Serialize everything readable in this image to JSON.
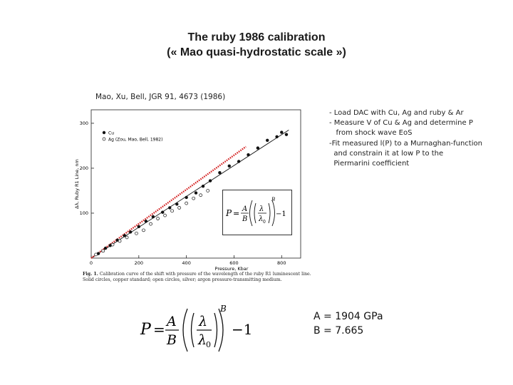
{
  "title": {
    "line1": "The ruby 1986 calibration",
    "line2": "(« Mao quasi-hydrostatic scale »)"
  },
  "reference": "Mao, Xu, Bell, JGR 91, 4673 (1986)",
  "bullets": [
    "- Load DAC with Cu, Ag and ruby & Ar",
    "- Measure V of Cu & Ag and determine P",
    "   from shock wave EoS",
    "-Fit measured l(P) to a Murnaghan-function",
    "  and constrain it at low P to the",
    "  Piermarini coefficient"
  ],
  "params": {
    "A": "A = 1904 GPa",
    "B": "B = 7.665"
  },
  "equation": {
    "lhs": "P",
    "eq": "=",
    "num": "A",
    "den": "B",
    "lambda": "λ",
    "lambda0": "λ",
    "sub0": "0",
    "exp": "B",
    "minus": "−1"
  },
  "caption": {
    "label": "Fig. 1.",
    "text": "Calibration curve of the shift with pressure of the wavelength of the ruby R1 luminescent line. Solid circles, copper standard; open circles, silver; argon pressure-transmitting medium."
  },
  "chart_data": {
    "type": "scatter",
    "xlabel": "Pressure, Kbar",
    "ylabel": "Δλ, Ruby R1 Line, nm",
    "xlim": [
      0,
      880
    ],
    "ylim": [
      0,
      330
    ],
    "xticks": [
      0,
      200,
      400,
      600,
      800
    ],
    "yticks": [
      100,
      200,
      300
    ],
    "grid": false,
    "legend_position": "top-left",
    "series": [
      {
        "name": "Cu",
        "marker": "filled-circle",
        "x": [
          30,
          60,
          80,
          110,
          140,
          165,
          200,
          230,
          260,
          300,
          330,
          360,
          400,
          440,
          470,
          500,
          540,
          580,
          620,
          660,
          700,
          740,
          780,
          800,
          820
        ],
        "y": [
          10,
          22,
          28,
          40,
          50,
          58,
          70,
          82,
          92,
          102,
          112,
          120,
          135,
          145,
          160,
          172,
          190,
          205,
          215,
          230,
          245,
          262,
          270,
          280,
          275
        ]
      },
      {
        "name": "Ag (Zou, Mao, Bell, 1982)",
        "marker": "open-circle",
        "x": [
          20,
          50,
          90,
          120,
          150,
          190,
          220,
          250,
          280,
          310,
          340,
          370,
          400,
          430,
          460,
          490
        ],
        "y": [
          8,
          16,
          30,
          38,
          46,
          55,
          62,
          76,
          88,
          95,
          105,
          112,
          122,
          133,
          140,
          150
        ]
      },
      {
        "name": "fit",
        "style": "solid-line",
        "x": [
          0,
          830
        ],
        "y": [
          0,
          285
        ]
      },
      {
        "name": "Piermarini",
        "style": "red-dotted-line",
        "x": [
          0,
          650
        ],
        "y": [
          0,
          248
        ]
      }
    ]
  }
}
